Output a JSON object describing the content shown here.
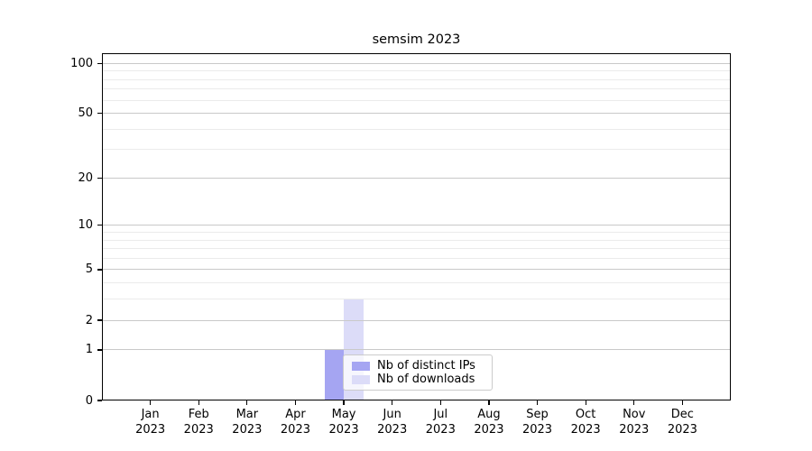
{
  "chart_data": {
    "type": "bar",
    "title": "semsim 2023",
    "x_tick_year": "2023",
    "categories": [
      "Jan",
      "Feb",
      "Mar",
      "Apr",
      "May",
      "Jun",
      "Jul",
      "Aug",
      "Sep",
      "Oct",
      "Nov",
      "Dec"
    ],
    "series": [
      {
        "name": "Nb of distinct IPs",
        "color": "#a5a5f2",
        "values": [
          0,
          0,
          0,
          0,
          1,
          0,
          0,
          0,
          0,
          0,
          0,
          0
        ]
      },
      {
        "name": "Nb of downloads",
        "color": "#dcdcf8",
        "values": [
          0,
          0,
          0,
          0,
          3,
          0,
          0,
          0,
          0,
          0,
          0,
          0
        ]
      }
    ],
    "yscale": "log1p",
    "ylim": [
      0,
      115
    ],
    "y_major_ticks": [
      0,
      1,
      2,
      5,
      10,
      20,
      50,
      100
    ],
    "y_minor_ticks": [
      3,
      4,
      6,
      7,
      8,
      9,
      30,
      40,
      60,
      70,
      80,
      90
    ],
    "grid": true,
    "legend_position": "inside-bottom-center"
  },
  "colors": {
    "axis": "#000000",
    "major_grid": "#c9c9c9",
    "minor_grid": "#ebebeb",
    "legend_border": "#cbcbcb"
  }
}
